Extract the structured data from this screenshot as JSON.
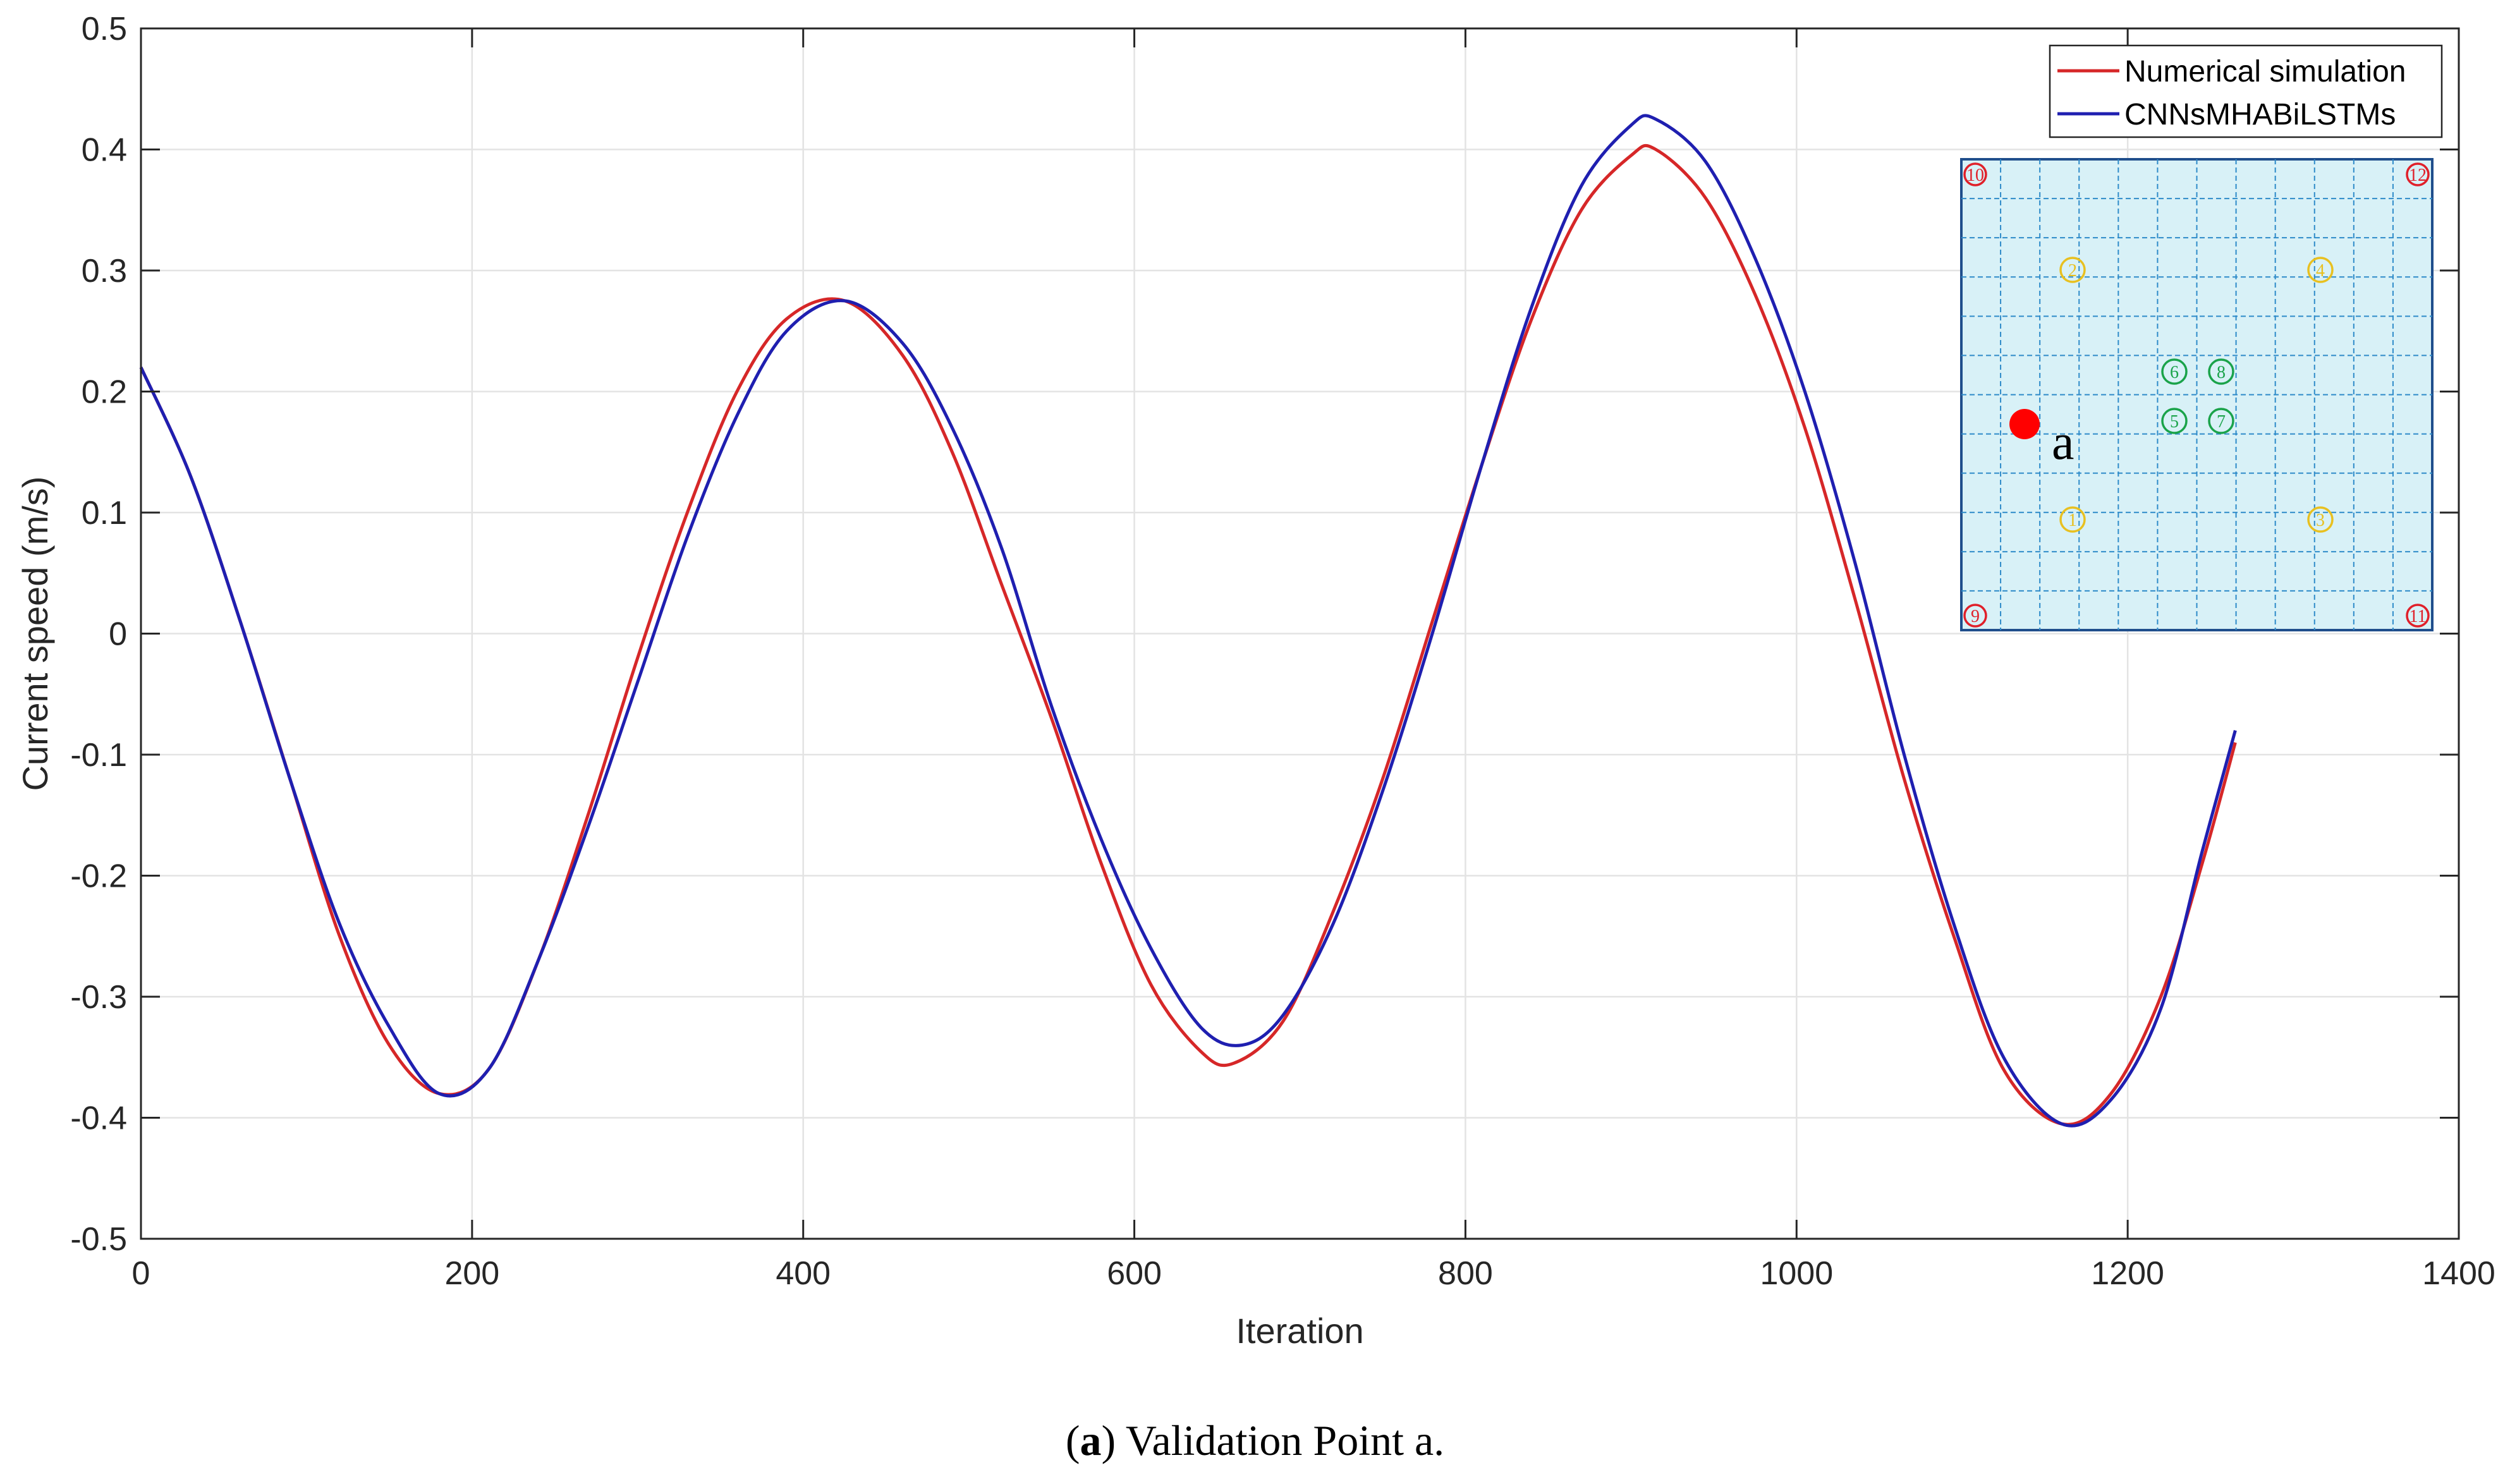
{
  "chart_data": {
    "type": "line",
    "xlabel": "Iteration",
    "ylabel": "Current speed (m/s)",
    "xlim": [
      0,
      1400
    ],
    "ylim": [
      -0.5,
      0.5
    ],
    "xticks": [
      0,
      200,
      400,
      600,
      800,
      1000,
      1200,
      1400
    ],
    "yticks": [
      -0.5,
      -0.4,
      -0.3,
      -0.2,
      -0.1,
      0,
      0.1,
      0.2,
      0.3,
      0.4,
      0.5
    ],
    "xtick_labels": [
      "0",
      "200",
      "400",
      "600",
      "800",
      "1000",
      "1200",
      "1400"
    ],
    "ytick_labels": [
      "-0.5",
      "-0.4",
      "-0.3",
      "-0.2",
      "-0.1",
      "0",
      "0.1",
      "0.2",
      "0.3",
      "0.4",
      "0.5"
    ],
    "grid": true,
    "legend_position": "top-right",
    "series": [
      {
        "name": "Numerical simulation",
        "color": "#d62728",
        "x": [
          0,
          30,
          60,
          90,
          120,
          150,
          180,
          210,
          240,
          270,
          300,
          330,
          360,
          390,
          425,
          460,
          490,
          520,
          550,
          580,
          610,
          640,
          660,
          690,
          720,
          750,
          780,
          810,
          840,
          870,
          900,
          915,
          945,
          975,
          1005,
          1035,
          1065,
          1095,
          1125,
          1160,
          1190,
          1220,
          1245,
          1265
        ],
        "y": [
          0.22,
          0.13,
          0.01,
          -0.12,
          -0.25,
          -0.34,
          -0.38,
          -0.36,
          -0.27,
          -0.15,
          -0.02,
          0.1,
          0.2,
          0.26,
          0.275,
          0.23,
          0.15,
          0.04,
          -0.07,
          -0.19,
          -0.29,
          -0.345,
          -0.355,
          -0.32,
          -0.23,
          -0.12,
          0.01,
          0.14,
          0.26,
          0.35,
          0.395,
          0.4,
          0.36,
          0.28,
          0.17,
          0.03,
          -0.12,
          -0.25,
          -0.36,
          -0.405,
          -0.38,
          -0.3,
          -0.19,
          -0.09
        ]
      },
      {
        "name": "CNNsMHABiLSTMs",
        "color": "#1f1fb0",
        "x": [
          0,
          30,
          60,
          90,
          120,
          150,
          180,
          210,
          240,
          270,
          300,
          330,
          360,
          390,
          425,
          460,
          490,
          520,
          550,
          580,
          610,
          640,
          665,
          690,
          720,
          750,
          780,
          810,
          840,
          870,
          900,
          915,
          945,
          975,
          1005,
          1035,
          1065,
          1095,
          1125,
          1160,
          1190,
          1220,
          1245,
          1265
        ],
        "y": [
          0.22,
          0.13,
          0.01,
          -0.12,
          -0.24,
          -0.325,
          -0.38,
          -0.36,
          -0.27,
          -0.16,
          -0.04,
          0.08,
          0.18,
          0.25,
          0.275,
          0.24,
          0.17,
          0.07,
          -0.06,
          -0.17,
          -0.26,
          -0.325,
          -0.34,
          -0.315,
          -0.24,
          -0.13,
          0.0,
          0.14,
          0.27,
          0.37,
          0.42,
          0.425,
          0.39,
          0.31,
          0.2,
          0.06,
          -0.1,
          -0.24,
          -0.35,
          -0.405,
          -0.385,
          -0.31,
          -0.18,
          -0.08
        ]
      }
    ]
  },
  "inset": {
    "point_label": "a",
    "yellow_markers": [
      "1",
      "2",
      "3",
      "4"
    ],
    "green_markers": [
      "5",
      "6",
      "7",
      "8"
    ],
    "red_markers": [
      "9",
      "10",
      "11",
      "12"
    ]
  },
  "caption": {
    "letter": "a",
    "text": " Validation Point a."
  },
  "colors": {
    "grid": "#e3e3e3",
    "axis": "#262626",
    "inset_grid": "#2e8bc9",
    "inset_border": "#1f4e8c",
    "inset_bg": "#d8f1f7",
    "red_marker": "#e0202a",
    "green_marker": "#1aa34a",
    "yellow_marker": "#e8c020",
    "point": "#ff0000"
  }
}
